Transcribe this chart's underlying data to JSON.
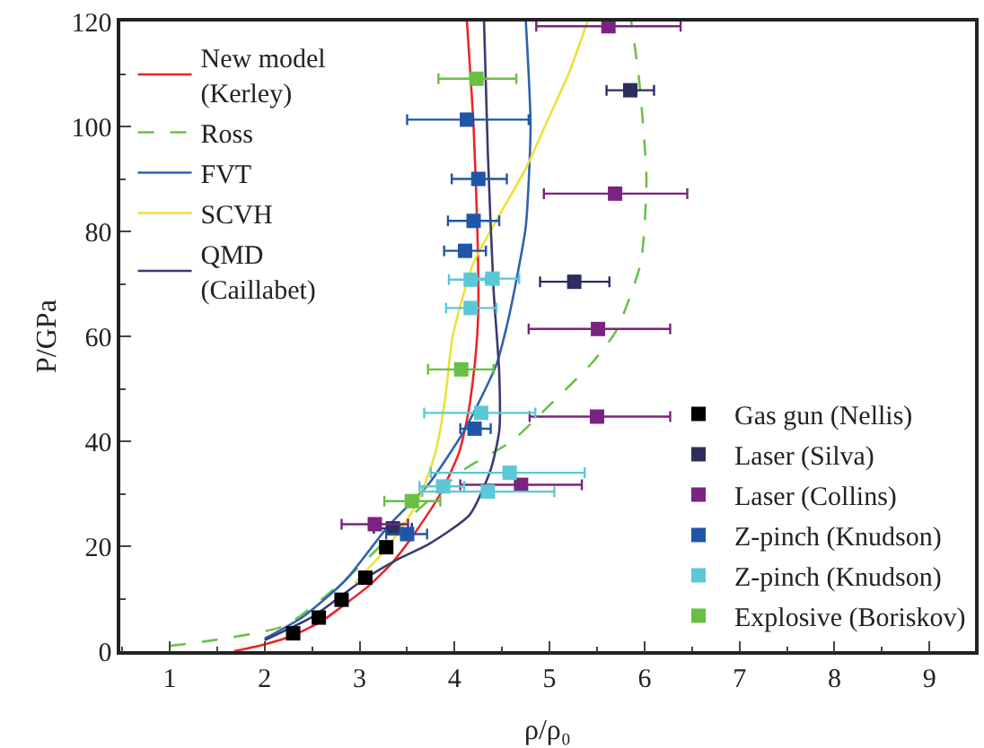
{
  "chart_data": {
    "type": "line",
    "xlabel": "ρ/ρ₀",
    "ylabel": "P/GPa",
    "xlim": [
      0.48,
      9.48
    ],
    "xticks": [
      1,
      2,
      3,
      4,
      5,
      6,
      7,
      8,
      9
    ],
    "ylim": [
      0,
      120
    ],
    "yticks": [
      0,
      20,
      40,
      60,
      80,
      100,
      120
    ],
    "grid": false,
    "legend": [
      "top left",
      "bottom right"
    ],
    "series": [
      {
        "name": "New model\n(Kerley)",
        "color": "#e8262a",
        "line_style": "solid",
        "x": [
          1.68,
          2.0,
          2.3,
          2.6,
          2.85,
          3.1,
          3.35,
          3.6,
          3.85,
          4.05,
          4.15,
          4.22,
          4.25,
          4.24,
          4.2,
          4.13
        ],
        "values": [
          0,
          1.3,
          3,
          5.7,
          9,
          12.5,
          17,
          23,
          30,
          38,
          46,
          56,
          65,
          80,
          100,
          120
        ]
      },
      {
        "name": "Ross",
        "color": "#6cc04a",
        "line_style": "dashed",
        "x": [
          1.0,
          1.5,
          2.22,
          2.84,
          3.5,
          4.1,
          4.6,
          4.95,
          5.45,
          5.7,
          5.96,
          6.02,
          5.94,
          5.86
        ],
        "values": [
          1.0,
          2.2,
          4.9,
          13.5,
          25,
          34.6,
          40,
          46,
          55,
          61,
          74,
          90,
          109.4,
          120
        ]
      },
      {
        "name": "FVT",
        "color": "#2e62b0",
        "line_style": "solid",
        "x": [
          2.0,
          2.4,
          2.85,
          3.3,
          3.72,
          4.1,
          4.44,
          4.55,
          4.66,
          4.75,
          4.8,
          4.75
        ],
        "values": [
          2.4,
          6.5,
          13.5,
          23.8,
          31.7,
          42,
          54.6,
          62,
          71.6,
          81,
          100,
          120
        ]
      },
      {
        "name": "SCVH",
        "color": "#ece13a",
        "line_style": "solid",
        "x": [
          2.95,
          3.3,
          3.6,
          3.8,
          3.9,
          3.98,
          4.2,
          4.5,
          4.75,
          5.0,
          5.2,
          5.4
        ],
        "values": [
          13,
          20,
          28,
          38,
          48,
          60,
          74,
          84,
          92,
          102,
          110,
          120
        ]
      },
      {
        "name": "QMD\n(Caillabet)",
        "color": "#3a3a6e",
        "line_style": "solid",
        "x": [
          2.0,
          2.5,
          3.03,
          3.4,
          3.72,
          4.16,
          4.38,
          4.47,
          4.47,
          4.41,
          4.35,
          4.31
        ],
        "values": [
          2.1,
          6.5,
          13.5,
          17.5,
          20.3,
          26,
          34.6,
          42,
          53,
          69,
          95,
          120
        ]
      },
      {
        "name": "Gas gun (Nellis)",
        "type": "scatter",
        "marker": "square",
        "color": "#000000",
        "x": [
          2.3,
          2.57,
          2.81,
          3.06,
          3.28
        ],
        "values": [
          3.4,
          6.4,
          9.8,
          14.0,
          19.8
        ]
      },
      {
        "name": "Laser (Silva)",
        "type": "scatter",
        "marker": "square",
        "color": "#2d2d5e",
        "x": [
          5.85,
          5.26,
          3.35
        ],
        "values": [
          106.9,
          70.4,
          23.4
        ],
        "xerrors": [
          [
            5.6,
            6.1
          ],
          [
            4.9,
            5.63
          ],
          [
            3.15,
            3.55
          ]
        ]
      },
      {
        "name": "Laser (Collins)",
        "type": "scatter",
        "marker": "square",
        "color": "#7b2380",
        "x": [
          5.62,
          5.69,
          5.51,
          5.5,
          4.7,
          3.16
        ],
        "values": [
          119.1,
          87.2,
          61.4,
          44.7,
          31.7,
          24.2
        ],
        "xerrors": [
          [
            4.86,
            6.38
          ],
          [
            4.94,
            6.45
          ],
          [
            4.78,
            6.27
          ],
          [
            4.79,
            6.27
          ],
          [
            4.06,
            5.34
          ],
          [
            2.81,
            3.51
          ]
        ]
      },
      {
        "name": "Z-pinch (Knudson)",
        "type": "scatter",
        "marker": "square",
        "color": "#1f56a8",
        "x": [
          4.13,
          4.25,
          4.2,
          4.11,
          4.21,
          3.5
        ],
        "values": [
          101.3,
          90.0,
          82.0,
          76.3,
          42.4,
          22.3
        ],
        "xerrors": [
          [
            3.5,
            4.78
          ],
          [
            3.97,
            4.55
          ],
          [
            3.93,
            4.47
          ],
          [
            3.89,
            4.33
          ],
          [
            4.06,
            4.38
          ],
          [
            3.28,
            3.71
          ]
        ]
      },
      {
        "name": "Z-pinch (Knudson)",
        "type": "scatter",
        "marker": "square",
        "color": "#5bc8d8",
        "x": [
          4.17,
          4.4,
          4.17,
          4.28,
          4.58,
          4.35,
          3.88
        ],
        "values": [
          70.8,
          71.0,
          65.4,
          45.4,
          34.0,
          30.4,
          31.4
        ],
        "xerrors": [
          [
            3.94,
            4.33
          ],
          [
            4.12,
            4.68
          ],
          [
            3.91,
            4.44
          ],
          [
            3.68,
            4.85
          ],
          [
            3.75,
            5.37
          ],
          [
            3.66,
            5.05
          ],
          [
            3.63,
            4.1
          ]
        ]
      },
      {
        "name": "Explosive (Boriskov)",
        "type": "scatter",
        "marker": "square",
        "color": "#6abf45",
        "x": [
          4.23,
          4.07,
          3.55
        ],
        "values": [
          109.1,
          53.7,
          28.6
        ],
        "xerrors": [
          [
            3.83,
            4.65
          ],
          [
            3.72,
            4.41
          ],
          [
            3.26,
            3.85
          ]
        ]
      }
    ]
  }
}
